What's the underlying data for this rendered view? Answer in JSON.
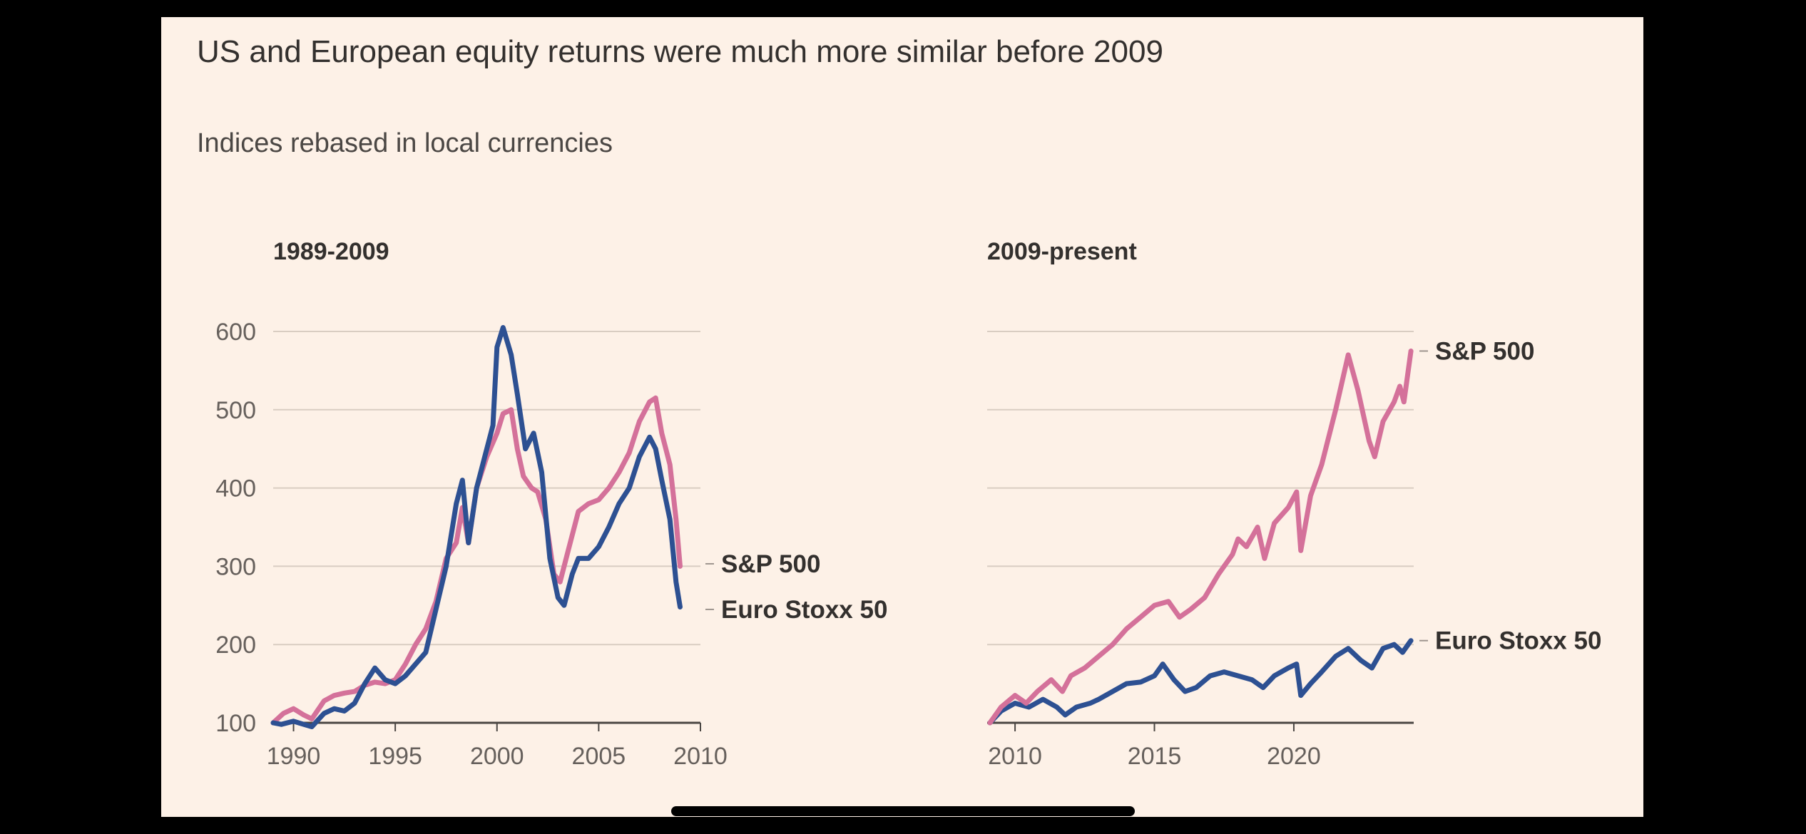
{
  "header": {
    "title": "US and European equity returns were much more similar before 2009",
    "subtitle": "Indices rebased in local currencies"
  },
  "colors": {
    "sp500": "#d4719a",
    "eurostoxx": "#2d5092",
    "grid": "#d9cdc2",
    "background": "#fdf1e7"
  },
  "chart_data": [
    {
      "type": "line",
      "title": "1989-2009",
      "xlim": [
        1989.0,
        2010.0
      ],
      "ylim": [
        100,
        600
      ],
      "yticks": [
        100,
        200,
        300,
        400,
        500,
        600
      ],
      "xticks": [
        1990,
        1995,
        2000,
        2005,
        2010
      ],
      "grid": true,
      "legend": "end-labels",
      "series": [
        {
          "name": "S&P 500",
          "color": "#d4719a",
          "points": [
            [
              1989.0,
              100
            ],
            [
              1989.5,
              112
            ],
            [
              1990.0,
              118
            ],
            [
              1990.5,
              110
            ],
            [
              1990.9,
              105
            ],
            [
              1991.5,
              128
            ],
            [
              1992.0,
              135
            ],
            [
              1992.5,
              138
            ],
            [
              1993.0,
              140
            ],
            [
              1993.5,
              148
            ],
            [
              1994.0,
              152
            ],
            [
              1994.5,
              150
            ],
            [
              1995.0,
              155
            ],
            [
              1995.5,
              175
            ],
            [
              1996.0,
              200
            ],
            [
              1996.5,
              220
            ],
            [
              1997.0,
              255
            ],
            [
              1997.5,
              310
            ],
            [
              1998.0,
              330
            ],
            [
              1998.3,
              375
            ],
            [
              1998.6,
              330
            ],
            [
              1999.0,
              400
            ],
            [
              1999.5,
              440
            ],
            [
              2000.0,
              470
            ],
            [
              2000.3,
              495
            ],
            [
              2000.7,
              500
            ],
            [
              2001.0,
              450
            ],
            [
              2001.3,
              415
            ],
            [
              2001.7,
              400
            ],
            [
              2002.0,
              395
            ],
            [
              2002.4,
              360
            ],
            [
              2002.8,
              290
            ],
            [
              2003.1,
              280
            ],
            [
              2003.5,
              320
            ],
            [
              2004.0,
              370
            ],
            [
              2004.5,
              380
            ],
            [
              2005.0,
              385
            ],
            [
              2005.5,
              400
            ],
            [
              2006.0,
              420
            ],
            [
              2006.5,
              445
            ],
            [
              2007.0,
              485
            ],
            [
              2007.5,
              510
            ],
            [
              2007.8,
              515
            ],
            [
              2008.1,
              470
            ],
            [
              2008.5,
              430
            ],
            [
              2008.8,
              360
            ],
            [
              2009.0,
              300
            ]
          ]
        },
        {
          "name": "Euro Stoxx 50",
          "color": "#2d5092",
          "points": [
            [
              1989.0,
              100
            ],
            [
              1989.4,
              98
            ],
            [
              1990.0,
              102
            ],
            [
              1990.5,
              98
            ],
            [
              1990.9,
              95
            ],
            [
              1991.5,
              112
            ],
            [
              1992.0,
              118
            ],
            [
              1992.5,
              115
            ],
            [
              1993.0,
              125
            ],
            [
              1993.5,
              150
            ],
            [
              1994.0,
              170
            ],
            [
              1994.5,
              155
            ],
            [
              1995.0,
              150
            ],
            [
              1995.5,
              160
            ],
            [
              1996.0,
              175
            ],
            [
              1996.5,
              190
            ],
            [
              1997.0,
              245
            ],
            [
              1997.5,
              300
            ],
            [
              1998.0,
              380
            ],
            [
              1998.3,
              410
            ],
            [
              1998.6,
              330
            ],
            [
              1999.0,
              400
            ],
            [
              1999.5,
              450
            ],
            [
              1999.8,
              480
            ],
            [
              2000.0,
              580
            ],
            [
              2000.3,
              605
            ],
            [
              2000.7,
              570
            ],
            [
              2001.0,
              520
            ],
            [
              2001.4,
              450
            ],
            [
              2001.8,
              470
            ],
            [
              2002.2,
              420
            ],
            [
              2002.6,
              310
            ],
            [
              2003.0,
              260
            ],
            [
              2003.3,
              250
            ],
            [
              2003.7,
              290
            ],
            [
              2004.0,
              310
            ],
            [
              2004.5,
              310
            ],
            [
              2005.0,
              325
            ],
            [
              2005.5,
              350
            ],
            [
              2006.0,
              380
            ],
            [
              2006.5,
              400
            ],
            [
              2007.0,
              440
            ],
            [
              2007.5,
              465
            ],
            [
              2007.8,
              450
            ],
            [
              2008.1,
              410
            ],
            [
              2008.5,
              360
            ],
            [
              2008.8,
              280
            ],
            [
              2009.0,
              248
            ]
          ]
        }
      ],
      "annotations": [
        {
          "text": "S&P 500",
          "series": "S&P 500"
        },
        {
          "text": "Euro Stoxx 50",
          "series": "Euro Stoxx 50"
        }
      ]
    },
    {
      "type": "line",
      "title": "2009-present",
      "xlim": [
        2009.0,
        2024.3
      ],
      "ylim": [
        100,
        600
      ],
      "yticks": [
        100,
        200,
        300,
        400,
        500,
        600
      ],
      "xticks": [
        2010,
        2015,
        2020
      ],
      "grid": true,
      "legend": "end-labels",
      "series": [
        {
          "name": "S&P 500",
          "color": "#d4719a",
          "points": [
            [
              2009.1,
              100
            ],
            [
              2009.5,
              120
            ],
            [
              2010.0,
              135
            ],
            [
              2010.4,
              125
            ],
            [
              2010.8,
              140
            ],
            [
              2011.3,
              155
            ],
            [
              2011.7,
              140
            ],
            [
              2012.0,
              160
            ],
            [
              2012.5,
              170
            ],
            [
              2013.0,
              185
            ],
            [
              2013.5,
              200
            ],
            [
              2014.0,
              220
            ],
            [
              2014.5,
              235
            ],
            [
              2015.0,
              250
            ],
            [
              2015.5,
              255
            ],
            [
              2015.9,
              235
            ],
            [
              2016.3,
              245
            ],
            [
              2016.8,
              260
            ],
            [
              2017.3,
              290
            ],
            [
              2017.8,
              315
            ],
            [
              2018.0,
              335
            ],
            [
              2018.3,
              325
            ],
            [
              2018.7,
              350
            ],
            [
              2018.95,
              310
            ],
            [
              2019.3,
              355
            ],
            [
              2019.8,
              375
            ],
            [
              2020.1,
              395
            ],
            [
              2020.25,
              320
            ],
            [
              2020.6,
              390
            ],
            [
              2021.0,
              430
            ],
            [
              2021.5,
              500
            ],
            [
              2021.95,
              570
            ],
            [
              2022.3,
              525
            ],
            [
              2022.7,
              460
            ],
            [
              2022.9,
              440
            ],
            [
              2023.2,
              485
            ],
            [
              2023.6,
              510
            ],
            [
              2023.8,
              530
            ],
            [
              2023.95,
              510
            ],
            [
              2024.2,
              575
            ]
          ]
        },
        {
          "name": "Euro Stoxx 50",
          "color": "#2d5092",
          "points": [
            [
              2009.1,
              100
            ],
            [
              2009.5,
              115
            ],
            [
              2010.0,
              125
            ],
            [
              2010.5,
              120
            ],
            [
              2011.0,
              130
            ],
            [
              2011.5,
              120
            ],
            [
              2011.8,
              110
            ],
            [
              2012.2,
              120
            ],
            [
              2012.7,
              125
            ],
            [
              2013.0,
              130
            ],
            [
              2013.5,
              140
            ],
            [
              2014.0,
              150
            ],
            [
              2014.5,
              152
            ],
            [
              2015.0,
              160
            ],
            [
              2015.3,
              175
            ],
            [
              2015.7,
              155
            ],
            [
              2016.1,
              140
            ],
            [
              2016.5,
              145
            ],
            [
              2017.0,
              160
            ],
            [
              2017.5,
              165
            ],
            [
              2018.0,
              160
            ],
            [
              2018.5,
              155
            ],
            [
              2018.9,
              145
            ],
            [
              2019.3,
              160
            ],
            [
              2019.8,
              170
            ],
            [
              2020.1,
              175
            ],
            [
              2020.25,
              135
            ],
            [
              2020.6,
              150
            ],
            [
              2021.0,
              165
            ],
            [
              2021.5,
              185
            ],
            [
              2021.95,
              195
            ],
            [
              2022.4,
              180
            ],
            [
              2022.8,
              170
            ],
            [
              2023.2,
              195
            ],
            [
              2023.6,
              200
            ],
            [
              2023.9,
              190
            ],
            [
              2024.2,
              205
            ]
          ]
        }
      ],
      "annotations": [
        {
          "text": "S&P 500",
          "series": "S&P 500"
        },
        {
          "text": "Euro Stoxx 50",
          "series": "Euro Stoxx 50"
        }
      ]
    }
  ]
}
